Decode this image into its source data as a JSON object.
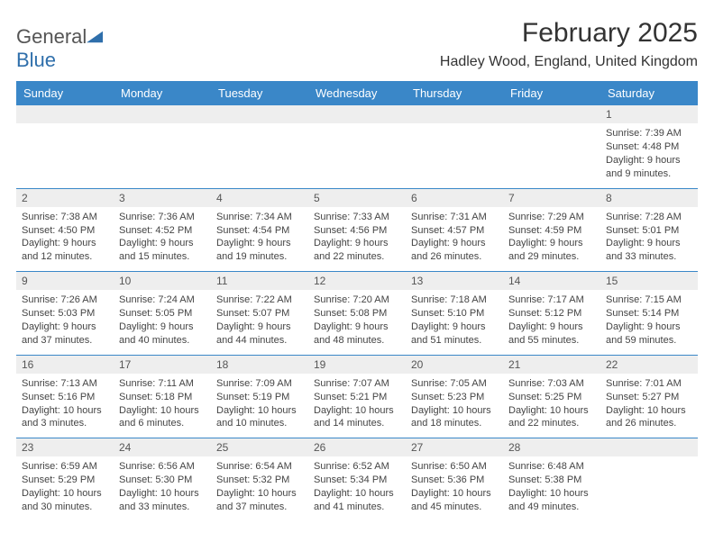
{
  "logo": {
    "part1": "General",
    "part2": "Blue"
  },
  "title": "February 2025",
  "location": "Hadley Wood, England, United Kingdom",
  "colors": {
    "header_bg": "#3a87c8",
    "header_text": "#ffffff",
    "daynum_bg": "#eeeeee",
    "border": "#3a87c8",
    "page_bg": "#ffffff",
    "text": "#444444",
    "logo_gray": "#555555",
    "logo_blue": "#2f6fab"
  },
  "typography": {
    "title_fontsize": 30,
    "location_fontsize": 16,
    "header_fontsize": 13,
    "cell_fontsize": 11,
    "daynum_fontsize": 12
  },
  "weekdays": [
    "Sunday",
    "Monday",
    "Tuesday",
    "Wednesday",
    "Thursday",
    "Friday",
    "Saturday"
  ],
  "weeks": [
    [
      {
        "day": "",
        "sunrise": "",
        "sunset": "",
        "daylight": ""
      },
      {
        "day": "",
        "sunrise": "",
        "sunset": "",
        "daylight": ""
      },
      {
        "day": "",
        "sunrise": "",
        "sunset": "",
        "daylight": ""
      },
      {
        "day": "",
        "sunrise": "",
        "sunset": "",
        "daylight": ""
      },
      {
        "day": "",
        "sunrise": "",
        "sunset": "",
        "daylight": ""
      },
      {
        "day": "",
        "sunrise": "",
        "sunset": "",
        "daylight": ""
      },
      {
        "day": "1",
        "sunrise": "Sunrise: 7:39 AM",
        "sunset": "Sunset: 4:48 PM",
        "daylight": "Daylight: 9 hours and 9 minutes."
      }
    ],
    [
      {
        "day": "2",
        "sunrise": "Sunrise: 7:38 AM",
        "sunset": "Sunset: 4:50 PM",
        "daylight": "Daylight: 9 hours and 12 minutes."
      },
      {
        "day": "3",
        "sunrise": "Sunrise: 7:36 AM",
        "sunset": "Sunset: 4:52 PM",
        "daylight": "Daylight: 9 hours and 15 minutes."
      },
      {
        "day": "4",
        "sunrise": "Sunrise: 7:34 AM",
        "sunset": "Sunset: 4:54 PM",
        "daylight": "Daylight: 9 hours and 19 minutes."
      },
      {
        "day": "5",
        "sunrise": "Sunrise: 7:33 AM",
        "sunset": "Sunset: 4:56 PM",
        "daylight": "Daylight: 9 hours and 22 minutes."
      },
      {
        "day": "6",
        "sunrise": "Sunrise: 7:31 AM",
        "sunset": "Sunset: 4:57 PM",
        "daylight": "Daylight: 9 hours and 26 minutes."
      },
      {
        "day": "7",
        "sunrise": "Sunrise: 7:29 AM",
        "sunset": "Sunset: 4:59 PM",
        "daylight": "Daylight: 9 hours and 29 minutes."
      },
      {
        "day": "8",
        "sunrise": "Sunrise: 7:28 AM",
        "sunset": "Sunset: 5:01 PM",
        "daylight": "Daylight: 9 hours and 33 minutes."
      }
    ],
    [
      {
        "day": "9",
        "sunrise": "Sunrise: 7:26 AM",
        "sunset": "Sunset: 5:03 PM",
        "daylight": "Daylight: 9 hours and 37 minutes."
      },
      {
        "day": "10",
        "sunrise": "Sunrise: 7:24 AM",
        "sunset": "Sunset: 5:05 PM",
        "daylight": "Daylight: 9 hours and 40 minutes."
      },
      {
        "day": "11",
        "sunrise": "Sunrise: 7:22 AM",
        "sunset": "Sunset: 5:07 PM",
        "daylight": "Daylight: 9 hours and 44 minutes."
      },
      {
        "day": "12",
        "sunrise": "Sunrise: 7:20 AM",
        "sunset": "Sunset: 5:08 PM",
        "daylight": "Daylight: 9 hours and 48 minutes."
      },
      {
        "day": "13",
        "sunrise": "Sunrise: 7:18 AM",
        "sunset": "Sunset: 5:10 PM",
        "daylight": "Daylight: 9 hours and 51 minutes."
      },
      {
        "day": "14",
        "sunrise": "Sunrise: 7:17 AM",
        "sunset": "Sunset: 5:12 PM",
        "daylight": "Daylight: 9 hours and 55 minutes."
      },
      {
        "day": "15",
        "sunrise": "Sunrise: 7:15 AM",
        "sunset": "Sunset: 5:14 PM",
        "daylight": "Daylight: 9 hours and 59 minutes."
      }
    ],
    [
      {
        "day": "16",
        "sunrise": "Sunrise: 7:13 AM",
        "sunset": "Sunset: 5:16 PM",
        "daylight": "Daylight: 10 hours and 3 minutes."
      },
      {
        "day": "17",
        "sunrise": "Sunrise: 7:11 AM",
        "sunset": "Sunset: 5:18 PM",
        "daylight": "Daylight: 10 hours and 6 minutes."
      },
      {
        "day": "18",
        "sunrise": "Sunrise: 7:09 AM",
        "sunset": "Sunset: 5:19 PM",
        "daylight": "Daylight: 10 hours and 10 minutes."
      },
      {
        "day": "19",
        "sunrise": "Sunrise: 7:07 AM",
        "sunset": "Sunset: 5:21 PM",
        "daylight": "Daylight: 10 hours and 14 minutes."
      },
      {
        "day": "20",
        "sunrise": "Sunrise: 7:05 AM",
        "sunset": "Sunset: 5:23 PM",
        "daylight": "Daylight: 10 hours and 18 minutes."
      },
      {
        "day": "21",
        "sunrise": "Sunrise: 7:03 AM",
        "sunset": "Sunset: 5:25 PM",
        "daylight": "Daylight: 10 hours and 22 minutes."
      },
      {
        "day": "22",
        "sunrise": "Sunrise: 7:01 AM",
        "sunset": "Sunset: 5:27 PM",
        "daylight": "Daylight: 10 hours and 26 minutes."
      }
    ],
    [
      {
        "day": "23",
        "sunrise": "Sunrise: 6:59 AM",
        "sunset": "Sunset: 5:29 PM",
        "daylight": "Daylight: 10 hours and 30 minutes."
      },
      {
        "day": "24",
        "sunrise": "Sunrise: 6:56 AM",
        "sunset": "Sunset: 5:30 PM",
        "daylight": "Daylight: 10 hours and 33 minutes."
      },
      {
        "day": "25",
        "sunrise": "Sunrise: 6:54 AM",
        "sunset": "Sunset: 5:32 PM",
        "daylight": "Daylight: 10 hours and 37 minutes."
      },
      {
        "day": "26",
        "sunrise": "Sunrise: 6:52 AM",
        "sunset": "Sunset: 5:34 PM",
        "daylight": "Daylight: 10 hours and 41 minutes."
      },
      {
        "day": "27",
        "sunrise": "Sunrise: 6:50 AM",
        "sunset": "Sunset: 5:36 PM",
        "daylight": "Daylight: 10 hours and 45 minutes."
      },
      {
        "day": "28",
        "sunrise": "Sunrise: 6:48 AM",
        "sunset": "Sunset: 5:38 PM",
        "daylight": "Daylight: 10 hours and 49 minutes."
      },
      {
        "day": "",
        "sunrise": "",
        "sunset": "",
        "daylight": ""
      }
    ]
  ]
}
